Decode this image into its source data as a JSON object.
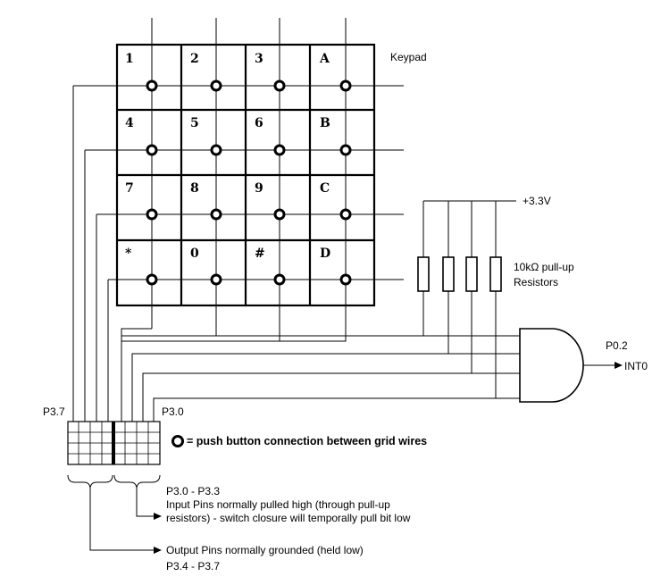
{
  "keypad": {
    "title": "Keypad",
    "keys": [
      [
        "1",
        "2",
        "3",
        "A"
      ],
      [
        "4",
        "5",
        "6",
        "B"
      ],
      [
        "7",
        "8",
        "9",
        "C"
      ],
      [
        "*",
        "0",
        "#",
        "D"
      ]
    ]
  },
  "supply": {
    "label": "+3.3V"
  },
  "resistors": {
    "label_line1": "10kΩ pull-up",
    "label_line2": "Resistors"
  },
  "gate": {
    "output_pin": "P0.2",
    "output_label": "INT0"
  },
  "port": {
    "left_pin": "P3.7",
    "right_pin": "P3.0"
  },
  "legend": {
    "text": "= push button connection between grid wires"
  },
  "notes": {
    "input_range": "P3.0 - P3.3",
    "input_line1": "Input Pins normally pulled high (through pull-up",
    "input_line2": "resistors) - switch closure will temporally pull bit low",
    "output_line": "Output Pins normally grounded (held low)",
    "output_range": "P3.4 - P3.7"
  }
}
